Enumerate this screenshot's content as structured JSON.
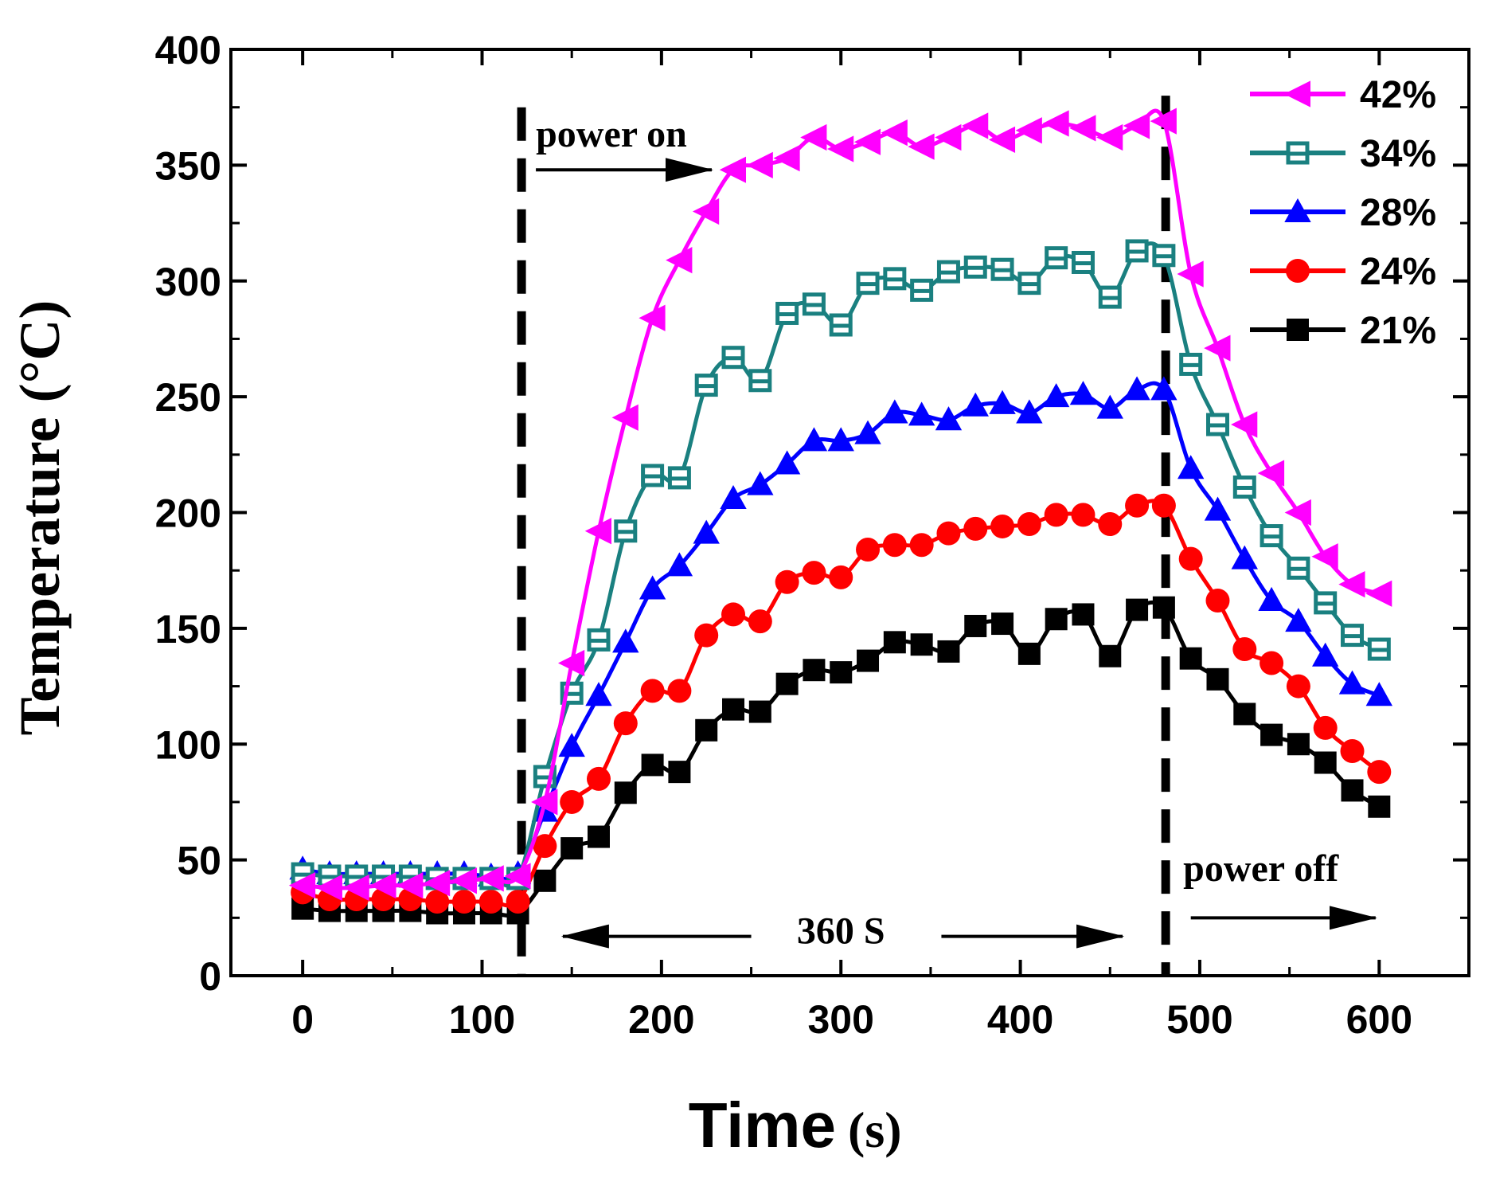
{
  "chart_data": {
    "type": "line",
    "title": "",
    "xlabel": "Time",
    "xlabel_unit": "(s)",
    "ylabel": "Temperature (°C)",
    "xlim": [
      -40,
      650
    ],
    "ylim": [
      0,
      400
    ],
    "x_ticks": [
      0,
      100,
      200,
      300,
      400,
      500,
      600
    ],
    "y_ticks": [
      0,
      50,
      100,
      150,
      200,
      250,
      300,
      350,
      400
    ],
    "grid": false,
    "legend_position": "top-right",
    "x": [
      0,
      15,
      30,
      45,
      60,
      75,
      90,
      105,
      120,
      135,
      150,
      165,
      180,
      195,
      210,
      225,
      240,
      255,
      270,
      285,
      300,
      315,
      330,
      345,
      360,
      375,
      390,
      405,
      420,
      435,
      450,
      465,
      480,
      495,
      510,
      525,
      540,
      555,
      570,
      585,
      600
    ],
    "series": [
      {
        "name": "42%",
        "marker": "triangle-left",
        "color": "#ff00ff",
        "values": [
          39,
          38,
          38,
          39,
          39,
          40,
          41,
          42,
          43,
          75,
          135,
          192,
          241,
          284,
          309,
          330,
          348,
          350,
          353,
          362,
          357,
          360,
          364,
          358,
          362,
          367,
          361,
          365,
          368,
          366,
          362,
          367,
          369,
          303,
          271,
          238,
          217,
          200,
          181,
          169,
          165
        ]
      },
      {
        "name": "34%",
        "marker": "square-open",
        "color": "#1a8080",
        "values": [
          44,
          43,
          43,
          43,
          43,
          42,
          42,
          42,
          42,
          86,
          122,
          145,
          192,
          216,
          215,
          255,
          267,
          257,
          286,
          290,
          281,
          299,
          301,
          296,
          304,
          306,
          305,
          299,
          310,
          308,
          293,
          313,
          311,
          264,
          238,
          211,
          190,
          176,
          161,
          147,
          141
        ]
      },
      {
        "name": "28%",
        "marker": "triangle-up",
        "color": "#0000ff",
        "values": [
          46,
          44,
          44,
          44,
          44,
          44,
          44,
          43,
          44,
          71,
          99,
          121,
          144,
          167,
          177,
          191,
          206,
          212,
          221,
          231,
          231,
          234,
          243,
          242,
          240,
          246,
          247,
          243,
          250,
          251,
          245,
          253,
          253,
          219,
          201,
          180,
          162,
          153,
          138,
          126,
          121
        ]
      },
      {
        "name": "24%",
        "marker": "circle",
        "color": "#ff0000",
        "values": [
          36,
          33,
          33,
          33,
          33,
          32,
          32,
          32,
          32,
          56,
          75,
          85,
          109,
          123,
          123,
          147,
          156,
          153,
          170,
          174,
          172,
          184,
          186,
          186,
          191,
          193,
          194,
          195,
          199,
          199,
          195,
          203,
          203,
          180,
          162,
          141,
          135,
          125,
          107,
          97,
          88
        ]
      },
      {
        "name": "21%",
        "marker": "square",
        "color": "#000000",
        "values": [
          29,
          28,
          28,
          28,
          28,
          27,
          27,
          27,
          27,
          41,
          55,
          60,
          79,
          91,
          88,
          106,
          115,
          114,
          126,
          132,
          131,
          136,
          144,
          143,
          140,
          151,
          152,
          139,
          154,
          156,
          138,
          158,
          159,
          137,
          128,
          113,
          104,
          100,
          92,
          80,
          73
        ]
      }
    ],
    "annotations": {
      "power_on": {
        "label": "power on",
        "x": 122
      },
      "power_off": {
        "label": "power off",
        "x": 481
      },
      "duration": {
        "label": "360 S"
      }
    }
  }
}
